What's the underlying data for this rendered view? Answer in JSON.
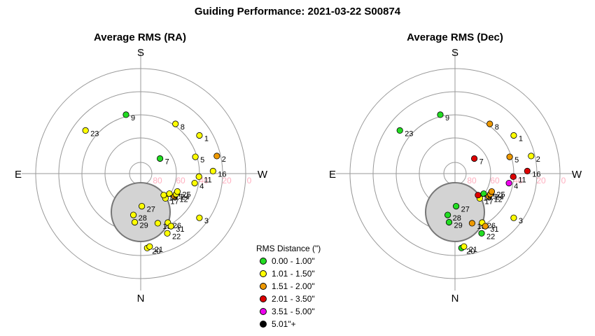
{
  "title": "Guiding Performance: 2021-03-22 S00874",
  "legend": {
    "title": "RMS Distance (\")",
    "items": [
      {
        "label": "0.00 - 1.00\"",
        "color": "#22dd22"
      },
      {
        "label": "1.01 - 1.50\"",
        "color": "#ffff00"
      },
      {
        "label": "1.51 - 2.00\"",
        "color": "#ee9900"
      },
      {
        "label": "2.01 - 3.50\"",
        "color": "#dd0000"
      },
      {
        "label": "3.51 - 5.00\"",
        "color": "#ee00ee"
      },
      {
        "label": "5.01\"+",
        "color": "#000000"
      }
    ]
  },
  "chart_data": [
    {
      "type": "scatter",
      "coordinate_system": "polar (azimuth, altitude)",
      "title": "Average RMS (RA)",
      "directions": {
        "top": "S",
        "bottom": "N",
        "left": "E",
        "right": "W"
      },
      "altitude_ticks": [
        "80",
        "60",
        "40",
        "20",
        "0"
      ],
      "altitude_range": [
        0,
        90
      ],
      "obstruction_color": "#d3d3d3",
      "points": [
        {
          "label": "1",
          "az": 303,
          "alt": 30,
          "color": "#ffff00"
        },
        {
          "label": "2",
          "az": 283,
          "alt": 23,
          "color": "#ee9900"
        },
        {
          "label": "3",
          "az": 233,
          "alt": 27,
          "color": "#ffff00"
        },
        {
          "label": "4",
          "az": 260,
          "alt": 43,
          "color": "#ffff00"
        },
        {
          "label": "5",
          "az": 287,
          "alt": 41,
          "color": "#ffff00"
        },
        {
          "label": "7",
          "az": 308,
          "alt": 69,
          "color": "#22dd22"
        },
        {
          "label": "8",
          "az": 325,
          "alt": 38,
          "color": "#ffff00"
        },
        {
          "label": "9",
          "az": 14,
          "alt": 38,
          "color": "#22dd22"
        },
        {
          "label": "11",
          "az": 267,
          "alt": 40,
          "color": "#ffff00"
        },
        {
          "label": "12",
          "az": 236,
          "alt": 55,
          "color": "#ee9900"
        },
        {
          "label": "13",
          "az": 199,
          "alt": 45,
          "color": "#ffff00"
        },
        {
          "label": "15",
          "az": 235,
          "alt": 60,
          "color": "#ffff00"
        },
        {
          "label": "16",
          "az": 272,
          "alt": 28,
          "color": "#ffff00"
        },
        {
          "label": "17",
          "az": 225,
          "alt": 60,
          "color": "#ffff00"
        },
        {
          "label": "18",
          "az": 227,
          "alt": 63,
          "color": "#ffff00"
        },
        {
          "label": "20",
          "az": 185,
          "alt": 26,
          "color": "#ffff00"
        },
        {
          "label": "21",
          "az": 187,
          "alt": 27,
          "color": "#ffff00"
        },
        {
          "label": "22",
          "az": 204,
          "alt": 34,
          "color": "#ffff00"
        },
        {
          "label": "23",
          "az": 52,
          "alt": 30,
          "color": "#ffff00"
        },
        {
          "label": "24",
          "az": 240,
          "alt": 55,
          "color": "#ffff00"
        },
        {
          "label": "25",
          "az": 244,
          "alt": 55,
          "color": "#ffff00"
        },
        {
          "label": "26",
          "az": 209,
          "alt": 42,
          "color": "#ffff00"
        },
        {
          "label": "27",
          "az": 182,
          "alt": 62,
          "color": "#ffff00"
        },
        {
          "label": "28",
          "az": 170,
          "alt": 54,
          "color": "#ffff00"
        },
        {
          "label": "29",
          "az": 173,
          "alt": 48,
          "color": "#ffff00"
        },
        {
          "label": "31",
          "az": 210,
          "alt": 38,
          "color": "#ffff00"
        }
      ]
    },
    {
      "type": "scatter",
      "coordinate_system": "polar (azimuth, altitude)",
      "title": "Average RMS (Dec)",
      "directions": {
        "top": "S",
        "bottom": "N",
        "left": "E",
        "right": "W"
      },
      "altitude_ticks": [
        "80",
        "60",
        "40",
        "20",
        "0"
      ],
      "altitude_range": [
        0,
        90
      ],
      "obstruction_color": "#d3d3d3",
      "points": [
        {
          "label": "1",
          "az": 303,
          "alt": 30,
          "color": "#ffff00"
        },
        {
          "label": "2",
          "az": 283,
          "alt": 23,
          "color": "#ffff00"
        },
        {
          "label": "3",
          "az": 233,
          "alt": 27,
          "color": "#ffff00"
        },
        {
          "label": "4",
          "az": 260,
          "alt": 43,
          "color": "#ee00ee"
        },
        {
          "label": "5",
          "az": 287,
          "alt": 41,
          "color": "#ee9900"
        },
        {
          "label": "7",
          "az": 308,
          "alt": 69,
          "color": "#dd0000"
        },
        {
          "label": "8",
          "az": 325,
          "alt": 38,
          "color": "#ee9900"
        },
        {
          "label": "9",
          "az": 14,
          "alt": 38,
          "color": "#22dd22"
        },
        {
          "label": "11",
          "az": 267,
          "alt": 40,
          "color": "#dd0000"
        },
        {
          "label": "12",
          "az": 236,
          "alt": 55,
          "color": "#ee9900"
        },
        {
          "label": "13",
          "az": 199,
          "alt": 45,
          "color": "#ee9900"
        },
        {
          "label": "15",
          "az": 235,
          "alt": 60,
          "color": "#22dd22"
        },
        {
          "label": "16",
          "az": 272,
          "alt": 28,
          "color": "#dd0000"
        },
        {
          "label": "17",
          "az": 225,
          "alt": 60,
          "color": "#ffff00"
        },
        {
          "label": "18",
          "az": 227,
          "alt": 63,
          "color": "#dd0000"
        },
        {
          "label": "20",
          "az": 185,
          "alt": 26,
          "color": "#22dd22"
        },
        {
          "label": "21",
          "az": 187,
          "alt": 27,
          "color": "#ffff00"
        },
        {
          "label": "22",
          "az": 204,
          "alt": 34,
          "color": "#22dd22"
        },
        {
          "label": "23",
          "az": 52,
          "alt": 30,
          "color": "#22dd22"
        },
        {
          "label": "24",
          "az": 240,
          "alt": 55,
          "color": "#ee9900"
        },
        {
          "label": "25",
          "az": 244,
          "alt": 55,
          "color": "#ee9900"
        },
        {
          "label": "26",
          "az": 209,
          "alt": 42,
          "color": "#ffff00"
        },
        {
          "label": "27",
          "az": 182,
          "alt": 62,
          "color": "#22dd22"
        },
        {
          "label": "28",
          "az": 170,
          "alt": 54,
          "color": "#22dd22"
        },
        {
          "label": "29",
          "az": 173,
          "alt": 48,
          "color": "#22dd22"
        },
        {
          "label": "31",
          "az": 210,
          "alt": 38,
          "color": "#ee9900"
        }
      ]
    }
  ]
}
